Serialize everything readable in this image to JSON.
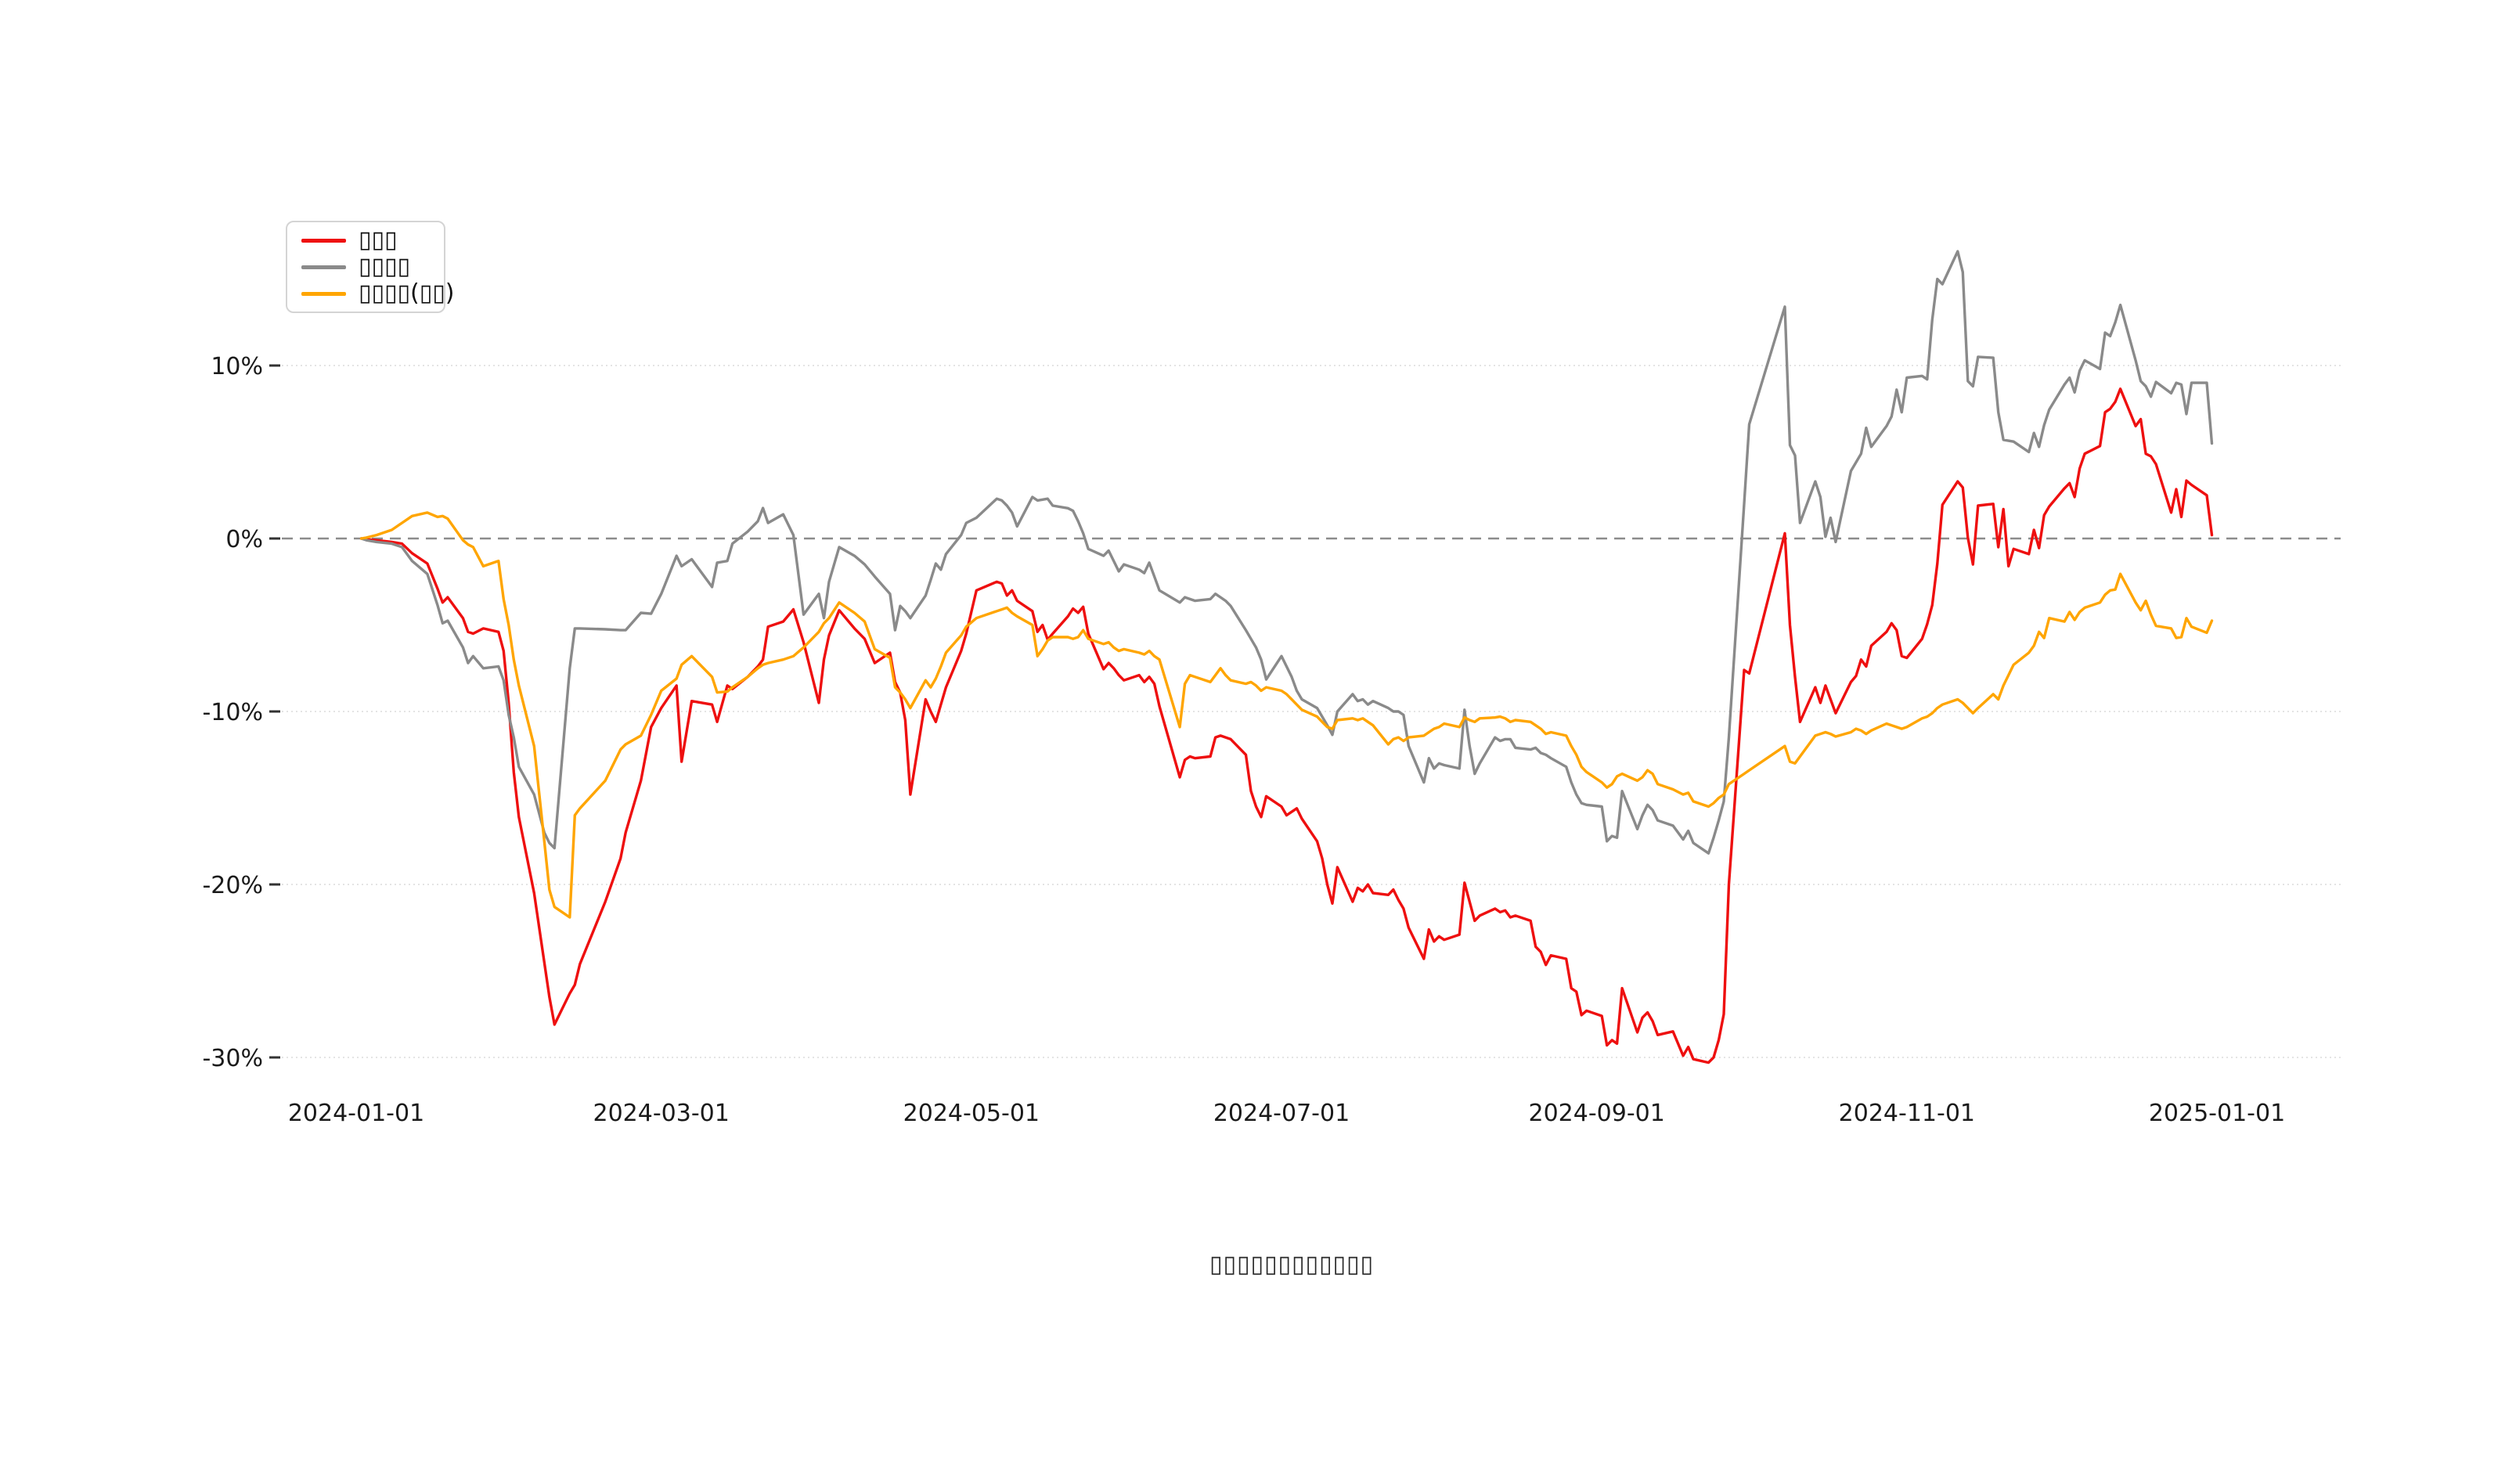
{
  "chart_data": {
    "type": "line",
    "title": "",
    "caption": "▯▯▯▯▯▯▯▯▯▯▯▯",
    "grid": true,
    "legend_position": "upper-left",
    "zero_line_dashed": true,
    "colors": {
      "background": "#ffffff",
      "gridline": "#e0e0e0",
      "zero_line": "#8c8c8c",
      "text": "#1a1a1a"
    },
    "x_axis": {
      "range": [
        "2024-01-01",
        "2025-01-01"
      ],
      "ticks": [
        "2024-01-01",
        "2024-03-01",
        "2024-05-01",
        "2024-07-01",
        "2024-09-01",
        "2024-11-01",
        "2025-01-01"
      ]
    },
    "y_axis": {
      "unit": "%",
      "ticks": [
        {
          "label": "10%",
          "value": 10
        },
        {
          "label": "0%",
          "value": 0
        },
        {
          "label": "-10%",
          "value": -10
        },
        {
          "label": "-20%",
          "value": -20
        },
        {
          "label": "-30%",
          "value": -30
        }
      ],
      "ylim": [
        -32.5,
        14.8
      ]
    },
    "dates": [
      "2024-01-02",
      "2024-01-03",
      "2024-01-05",
      "2024-01-08",
      "2024-01-10",
      "2024-01-12",
      "2024-01-15",
      "2024-01-17",
      "2024-01-18",
      "2024-01-19",
      "2024-01-22",
      "2024-01-23",
      "2024-01-24",
      "2024-01-26",
      "2024-01-29",
      "2024-01-30",
      "2024-01-31",
      "2024-02-01",
      "2024-02-02",
      "2024-02-05",
      "2024-02-07",
      "2024-02-08",
      "2024-02-09",
      "2024-02-12",
      "2024-02-13",
      "2024-02-14",
      "2024-02-19",
      "2024-02-22",
      "2024-02-23",
      "2024-02-26",
      "2024-02-28",
      "2024-03-01",
      "2024-03-04",
      "2024-03-05",
      "2024-03-07",
      "2024-03-11",
      "2024-03-12",
      "2024-03-14",
      "2024-03-15",
      "2024-03-18",
      "2024-03-20",
      "2024-03-21",
      "2024-03-22",
      "2024-03-25",
      "2024-03-27",
      "2024-03-29",
      "2024-04-01",
      "2024-04-02",
      "2024-04-03",
      "2024-04-05",
      "2024-04-08",
      "2024-04-10",
      "2024-04-12",
      "2024-04-15",
      "2024-04-16",
      "2024-04-17",
      "2024-04-18",
      "2024-04-19",
      "2024-04-22",
      "2024-04-23",
      "2024-04-24",
      "2024-04-25",
      "2024-04-26",
      "2024-04-29",
      "2024-04-30",
      "2024-05-02",
      "2024-05-06",
      "2024-05-07",
      "2024-05-08",
      "2024-05-09",
      "2024-05-10",
      "2024-05-13",
      "2024-05-14",
      "2024-05-15",
      "2024-05-16",
      "2024-05-17",
      "2024-05-20",
      "2024-05-21",
      "2024-05-22",
      "2024-05-23",
      "2024-05-24",
      "2024-05-27",
      "2024-05-28",
      "2024-05-29",
      "2024-05-30",
      "2024-05-31",
      "2024-06-03",
      "2024-06-04",
      "2024-06-05",
      "2024-06-06",
      "2024-06-07",
      "2024-06-11",
      "2024-06-12",
      "2024-06-13",
      "2024-06-14",
      "2024-06-17",
      "2024-06-18",
      "2024-06-19",
      "2024-06-20",
      "2024-06-21",
      "2024-06-24",
      "2024-06-25",
      "2024-06-26",
      "2024-06-27",
      "2024-06-28",
      "2024-07-01",
      "2024-07-02",
      "2024-07-03",
      "2024-07-04",
      "2024-07-05",
      "2024-07-08",
      "2024-07-09",
      "2024-07-10",
      "2024-07-11",
      "2024-07-12",
      "2024-07-15",
      "2024-07-16",
      "2024-07-17",
      "2024-07-18",
      "2024-07-19",
      "2024-07-22",
      "2024-07-23",
      "2024-07-24",
      "2024-07-25",
      "2024-07-26",
      "2024-07-29",
      "2024-07-30",
      "2024-07-31",
      "2024-08-01",
      "2024-08-02",
      "2024-08-05",
      "2024-08-06",
      "2024-08-07",
      "2024-08-08",
      "2024-08-09",
      "2024-08-12",
      "2024-08-13",
      "2024-08-14",
      "2024-08-15",
      "2024-08-16",
      "2024-08-19",
      "2024-08-20",
      "2024-08-21",
      "2024-08-22",
      "2024-08-23",
      "2024-08-26",
      "2024-08-27",
      "2024-08-28",
      "2024-08-29",
      "2024-08-30",
      "2024-09-02",
      "2024-09-03",
      "2024-09-04",
      "2024-09-05",
      "2024-09-06",
      "2024-09-09",
      "2024-09-10",
      "2024-09-11",
      "2024-09-12",
      "2024-09-13",
      "2024-09-16",
      "2024-09-18",
      "2024-09-19",
      "2024-09-20",
      "2024-09-23",
      "2024-09-24",
      "2024-09-25",
      "2024-09-26",
      "2024-09-27",
      "2024-09-30",
      "2024-10-01",
      "2024-10-08",
      "2024-10-09",
      "2024-10-10",
      "2024-10-11",
      "2024-10-14",
      "2024-10-15",
      "2024-10-16",
      "2024-10-17",
      "2024-10-18",
      "2024-10-21",
      "2024-10-22",
      "2024-10-23",
      "2024-10-24",
      "2024-10-25",
      "2024-10-28",
      "2024-10-29",
      "2024-10-30",
      "2024-10-31",
      "2024-11-01",
      "2024-11-04",
      "2024-11-05",
      "2024-11-06",
      "2024-11-07",
      "2024-11-08",
      "2024-11-11",
      "2024-11-12",
      "2024-11-13",
      "2024-11-14",
      "2024-11-15",
      "2024-11-18",
      "2024-11-19",
      "2024-11-20",
      "2024-11-21",
      "2024-11-22",
      "2024-11-25",
      "2024-11-26",
      "2024-11-27",
      "2024-11-28",
      "2024-11-29",
      "2024-12-02",
      "2024-12-03",
      "2024-12-04",
      "2024-12-05",
      "2024-12-06",
      "2024-12-09",
      "2024-12-10",
      "2024-12-11",
      "2024-12-12",
      "2024-12-13",
      "2024-12-16",
      "2024-12-17",
      "2024-12-18",
      "2024-12-19",
      "2024-12-20",
      "2024-12-23",
      "2024-12-24",
      "2024-12-25",
      "2024-12-26",
      "2024-12-27",
      "2024-12-30",
      "2024-12-31"
    ],
    "series": [
      {
        "name": "▯▯▯",
        "color": "#ee0f0f",
        "values": [
          0,
          -0.05,
          -0.1,
          -0.2,
          -0.3,
          -0.85,
          -1.45,
          -2.9,
          -3.7,
          -3.4,
          -4.6,
          -5.4,
          -5.5,
          -5.2,
          -5.4,
          -6.5,
          -9.5,
          -13.5,
          -16.1,
          -20.5,
          -24.5,
          -26.5,
          -28.1,
          -26.3,
          -25.8,
          -24.6,
          -21.0,
          -18.5,
          -17.0,
          -14.0,
          -10.9,
          -9.8,
          -8.5,
          -12.9,
          -9.4,
          -9.6,
          -10.6,
          -8.5,
          -8.7,
          -8.0,
          -7.4,
          -7.0,
          -5.1,
          -4.8,
          -4.1,
          -6.0,
          -9.5,
          -7.0,
          -5.6,
          -4.15,
          -5.2,
          -5.8,
          -7.2,
          -6.6,
          -8.3,
          -8.9,
          -10.5,
          -14.8,
          -9.3,
          -10.0,
          -10.6,
          -9.6,
          -8.6,
          -6.5,
          -5.5,
          -3.0,
          -2.5,
          -2.6,
          -3.3,
          -3.0,
          -3.6,
          -4.2,
          -5.4,
          -5.0,
          -5.85,
          -5.5,
          -4.5,
          -4.05,
          -4.3,
          -3.95,
          -5.5,
          -7.55,
          -7.2,
          -7.5,
          -7.9,
          -8.2,
          -7.9,
          -8.3,
          -8.0,
          -8.4,
          -9.7,
          -13.8,
          -12.8,
          -12.6,
          -12.7,
          -12.6,
          -11.5,
          -11.4,
          -11.5,
          -11.6,
          -12.5,
          -14.6,
          -15.5,
          -16.1,
          -14.9,
          -15.5,
          -16.0,
          -15.8,
          -15.6,
          -16.2,
          -17.5,
          -18.5,
          -20.0,
          -21.1,
          -19.0,
          -21.0,
          -20.2,
          -20.4,
          -20.0,
          -20.5,
          -20.6,
          -20.3,
          -20.9,
          -21.4,
          -22.5,
          -24.3,
          -22.6,
          -23.3,
          -23.0,
          -23.2,
          -22.9,
          -19.9,
          -21.0,
          -22.1,
          -21.8,
          -21.4,
          -21.6,
          -21.5,
          -21.9,
          -21.8,
          -22.1,
          -23.6,
          -23.9,
          -24.65,
          -24.1,
          -24.3,
          -26.0,
          -26.2,
          -27.55,
          -27.3,
          -27.6,
          -29.3,
          -29.0,
          -29.2,
          -26.0,
          -28.55,
          -27.7,
          -27.4,
          -27.9,
          -28.7,
          -28.5,
          -29.9,
          -29.4,
          -30.1,
          -30.3,
          -30.0,
          -29.0,
          -27.5,
          -20.0,
          -7.6,
          -7.8,
          0.3,
          -5.0,
          -8.0,
          -10.6,
          -8.6,
          -9.5,
          -8.5,
          -9.3,
          -10.1,
          -8.3,
          -7.95,
          -7.0,
          -7.4,
          -6.2,
          -5.4,
          -4.9,
          -5.3,
          -6.8,
          -6.9,
          -5.8,
          -4.95,
          -3.85,
          -1.45,
          1.95,
          3.3,
          2.95,
          0.05,
          -1.5,
          1.9,
          2.0,
          -0.5,
          1.7,
          -1.6,
          -0.6,
          -0.9,
          0.5,
          -0.55,
          1.35,
          1.85,
          2.9,
          3.2,
          2.4,
          4.05,
          4.9,
          5.35,
          7.3,
          7.5,
          7.9,
          8.65,
          6.5,
          6.9,
          4.9,
          4.75,
          4.3,
          1.5,
          2.85,
          1.25,
          3.35,
          3.1,
          2.5,
          0.2
        ]
      },
      {
        "name": "▯▯▯▯",
        "color": "#8a8a8a",
        "values": [
          0,
          -0.1,
          -0.2,
          -0.3,
          -0.5,
          -1.3,
          -2.05,
          -3.85,
          -4.9,
          -4.75,
          -6.3,
          -7.2,
          -6.8,
          -7.5,
          -7.4,
          -8.2,
          -10.2,
          -11.5,
          -13.2,
          -14.8,
          -17.0,
          -17.6,
          -17.9,
          -7.5,
          -5.2,
          -5.2,
          -5.25,
          -5.3,
          -5.3,
          -4.3,
          -4.35,
          -3.2,
          -1.0,
          -1.6,
          -1.2,
          -2.8,
          -1.4,
          -1.3,
          -0.3,
          0.4,
          1.0,
          1.76,
          0.9,
          1.4,
          0.2,
          -4.4,
          -3.2,
          -4.6,
          -2.5,
          -0.5,
          -1.0,
          -1.5,
          -2.2,
          -3.2,
          -5.3,
          -3.9,
          -4.2,
          -4.6,
          -3.3,
          -2.4,
          -1.45,
          -1.8,
          -0.9,
          0.2,
          0.9,
          1.2,
          2.3,
          2.2,
          1.9,
          1.5,
          0.7,
          2.4,
          2.2,
          2.25,
          2.3,
          1.9,
          1.75,
          1.6,
          1.0,
          0.3,
          -0.6,
          -1.0,
          -0.7,
          -1.3,
          -1.9,
          -1.5,
          -1.8,
          -2.0,
          -1.4,
          -2.2,
          -3.0,
          -3.7,
          -3.4,
          -3.5,
          -3.6,
          -3.5,
          -3.2,
          -3.4,
          -3.6,
          -3.9,
          -5.3,
          -5.8,
          -6.3,
          -7.0,
          -8.15,
          -6.8,
          -7.4,
          -8.0,
          -8.8,
          -9.3,
          -9.8,
          -10.3,
          -10.8,
          -11.35,
          -10.0,
          -9.0,
          -9.4,
          -9.3,
          -9.6,
          -9.4,
          -9.8,
          -10.0,
          -10.0,
          -10.2,
          -12.0,
          -14.1,
          -12.7,
          -13.3,
          -13.0,
          -13.1,
          -13.3,
          -9.9,
          -12.0,
          -13.6,
          -13.0,
          -11.5,
          -11.7,
          -11.6,
          -11.6,
          -12.1,
          -12.2,
          -12.1,
          -12.4,
          -12.5,
          -12.7,
          -13.2,
          -14.1,
          -14.8,
          -15.3,
          -15.4,
          -15.5,
          -17.5,
          -17.2,
          -17.3,
          -14.6,
          -16.8,
          -16.0,
          -15.4,
          -15.7,
          -16.3,
          -16.6,
          -17.4,
          -16.9,
          -17.6,
          -18.2,
          -17.3,
          -16.3,
          -15.2,
          -11.5,
          2.0,
          6.6,
          13.4,
          5.4,
          4.8,
          0.9,
          3.3,
          2.4,
          0.1,
          1.2,
          -0.2,
          3.9,
          4.4,
          4.9,
          6.4,
          5.3,
          6.5,
          7.05,
          8.6,
          7.3,
          9.3,
          9.4,
          9.2,
          12.65,
          15.0,
          14.7,
          16.6,
          15.4,
          9.1,
          8.8,
          10.5,
          10.45,
          7.3,
          5.7,
          5.65,
          5.6,
          5.0,
          6.1,
          5.3,
          6.55,
          7.45,
          8.9,
          9.3,
          8.45,
          9.7,
          10.3,
          9.8,
          11.9,
          11.7,
          12.5,
          13.5,
          10.3,
          9.1,
          8.8,
          8.2,
          9.05,
          8.4,
          9.0,
          8.9,
          7.2,
          9.0,
          9.0,
          5.5
        ]
      },
      {
        "name": "▯▯▯▯(▯▯)",
        "color": "#ffa500",
        "values": [
          0,
          0.05,
          0.2,
          0.5,
          0.9,
          1.3,
          1.5,
          1.25,
          1.3,
          1.15,
          -0.1,
          -0.35,
          -0.5,
          -1.6,
          -1.3,
          -3.5,
          -5.0,
          -7.0,
          -8.5,
          -12.0,
          -17.5,
          -20.3,
          -21.3,
          -21.9,
          -16.0,
          -15.6,
          -14.0,
          -12.2,
          -11.9,
          -11.4,
          -10.2,
          -8.8,
          -8.1,
          -7.3,
          -6.8,
          -8.0,
          -8.9,
          -8.85,
          -8.6,
          -8.0,
          -7.5,
          -7.3,
          -7.2,
          -7.0,
          -6.8,
          -6.3,
          -5.4,
          -4.9,
          -4.6,
          -3.7,
          -4.3,
          -4.8,
          -6.4,
          -6.9,
          -8.6,
          -8.9,
          -9.3,
          -9.8,
          -8.2,
          -8.6,
          -8.1,
          -7.4,
          -6.6,
          -5.6,
          -5.1,
          -4.6,
          -4.2,
          -4.1,
          -4.0,
          -4.3,
          -4.5,
          -5.0,
          -6.8,
          -6.4,
          -5.9,
          -5.7,
          -5.7,
          -5.8,
          -5.7,
          -5.3,
          -5.8,
          -6.1,
          -6.0,
          -6.3,
          -6.5,
          -6.4,
          -6.6,
          -6.7,
          -6.5,
          -6.8,
          -7.0,
          -10.9,
          -8.4,
          -7.9,
          -8.0,
          -8.3,
          -7.9,
          -7.5,
          -7.9,
          -8.2,
          -8.4,
          -8.3,
          -8.5,
          -8.8,
          -8.6,
          -8.8,
          -9.0,
          -9.3,
          -9.6,
          -9.9,
          -10.3,
          -10.6,
          -10.9,
          -11.0,
          -10.5,
          -10.4,
          -10.5,
          -10.4,
          -10.6,
          -10.8,
          -11.9,
          -11.6,
          -11.5,
          -11.7,
          -11.5,
          -11.4,
          -11.2,
          -11.0,
          -10.9,
          -10.7,
          -10.9,
          -10.35,
          -10.5,
          -10.6,
          -10.4,
          -10.35,
          -10.3,
          -10.4,
          -10.6,
          -10.5,
          -10.6,
          -10.8,
          -11.0,
          -11.3,
          -11.2,
          -11.4,
          -12.0,
          -12.5,
          -13.2,
          -13.5,
          -14.1,
          -14.4,
          -14.2,
          -13.75,
          -13.6,
          -14.0,
          -13.8,
          -13.4,
          -13.6,
          -14.2,
          -14.5,
          -14.8,
          -14.7,
          -15.2,
          -15.5,
          -15.3,
          -15.0,
          -14.8,
          -14.2,
          -13.6,
          -13.4,
          -12.0,
          -12.9,
          -13.0,
          -12.6,
          -11.4,
          -11.3,
          -11.2,
          -11.3,
          -11.45,
          -11.2,
          -11.0,
          -11.1,
          -11.3,
          -11.1,
          -10.7,
          -10.8,
          -10.9,
          -11.0,
          -10.9,
          -10.4,
          -10.3,
          -10.1,
          -9.8,
          -9.6,
          -9.3,
          -9.5,
          -9.8,
          -10.1,
          -9.8,
          -9.0,
          -9.3,
          -8.5,
          -7.9,
          -7.3,
          -6.6,
          -6.2,
          -5.4,
          -5.75,
          -4.6,
          -4.8,
          -4.25,
          -4.7,
          -4.25,
          -4.0,
          -3.7,
          -3.25,
          -3.0,
          -2.95,
          -2.05,
          -3.7,
          -4.15,
          -3.6,
          -4.4,
          -5.05,
          -5.2,
          -5.75,
          -5.7,
          -4.6,
          -5.1,
          -5.45,
          -4.75
        ]
      }
    ]
  }
}
